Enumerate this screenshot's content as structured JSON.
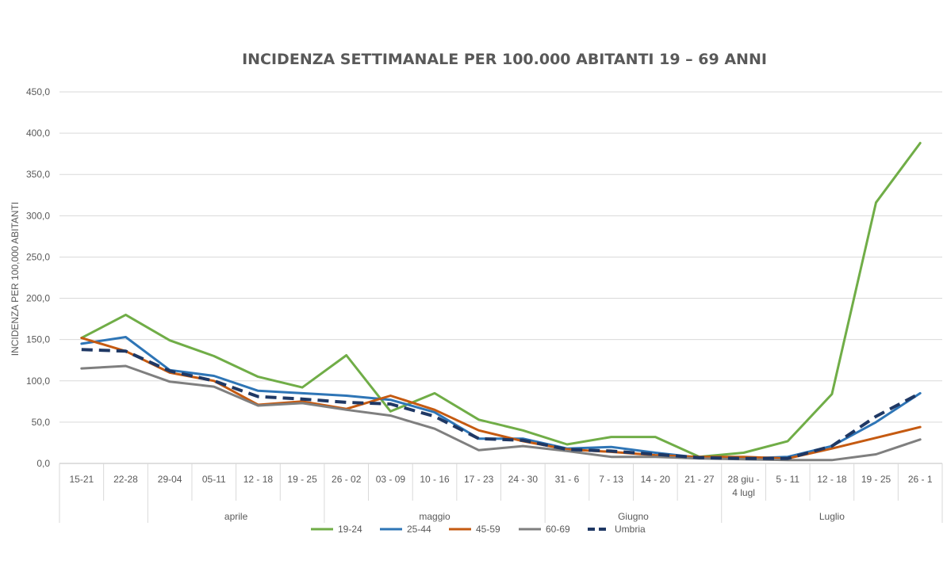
{
  "chart_data": {
    "type": "line",
    "title": "INCIDENZA SETTIMANALE PER 100.000 ABITANTI 19 – 69 ANNI",
    "xlabel": "",
    "ylabel": "INCIDENZA PER 100,000 ABITANTI",
    "ylim": [
      0,
      450
    ],
    "yticks": [
      "0,0",
      "50,0",
      "100,0",
      "150,0",
      "200,0",
      "250,0",
      "300,0",
      "350,0",
      "400,0",
      "450,0"
    ],
    "categories": [
      "15-21",
      "22-28",
      "29-04",
      "05-11",
      "12 - 18",
      "19 - 25",
      "26 - 02",
      "03 - 09",
      "10 - 16",
      "17 - 23",
      "24 - 30",
      "31 - 6",
      "7 - 13",
      "14 - 20",
      "21 - 27",
      "28 giu - 4 lugl",
      "5 - 11",
      "12 - 18",
      "19 - 25",
      "26 - 1"
    ],
    "groups": [
      {
        "label": "",
        "start": 0,
        "end": 1
      },
      {
        "label": "aprile",
        "start": 2,
        "end": 5
      },
      {
        "label": "maggio",
        "start": 6,
        "end": 10
      },
      {
        "label": "Giugno",
        "start": 11,
        "end": 14
      },
      {
        "label": "Luglio",
        "start": 15,
        "end": 19
      }
    ],
    "grid": true,
    "legend": "bottom",
    "series": [
      {
        "name": "19-24",
        "color": "#70AD47",
        "dash": false,
        "values": [
          152,
          180,
          149,
          130,
          105,
          92,
          131,
          63,
          85,
          53,
          40,
          23,
          32,
          32,
          8,
          13,
          27,
          84,
          316,
          388
        ]
      },
      {
        "name": "25-44",
        "color": "#2E75B6",
        "dash": false,
        "values": [
          145,
          153,
          113,
          106,
          88,
          85,
          82,
          77,
          62,
          30,
          30,
          18,
          20,
          13,
          7,
          6,
          8,
          21,
          50,
          85
        ]
      },
      {
        "name": "45-59",
        "color": "#C55A11",
        "dash": false,
        "values": [
          152,
          136,
          110,
          100,
          71,
          75,
          66,
          82,
          65,
          40,
          27,
          17,
          14,
          10,
          8,
          8,
          6,
          18,
          31,
          44
        ]
      },
      {
        "name": "60-69",
        "color": "#7F7F7F",
        "dash": false,
        "values": [
          115,
          118,
          99,
          93,
          70,
          73,
          65,
          58,
          42,
          16,
          21,
          15,
          8,
          8,
          6,
          5,
          4,
          4,
          11,
          29
        ]
      },
      {
        "name": "Umbria",
        "color": "#1F3864",
        "dash": true,
        "values": [
          138,
          136,
          112,
          100,
          81,
          78,
          74,
          72,
          57,
          30,
          28,
          17,
          15,
          11,
          7,
          6,
          6,
          21,
          57,
          85
        ]
      }
    ]
  }
}
